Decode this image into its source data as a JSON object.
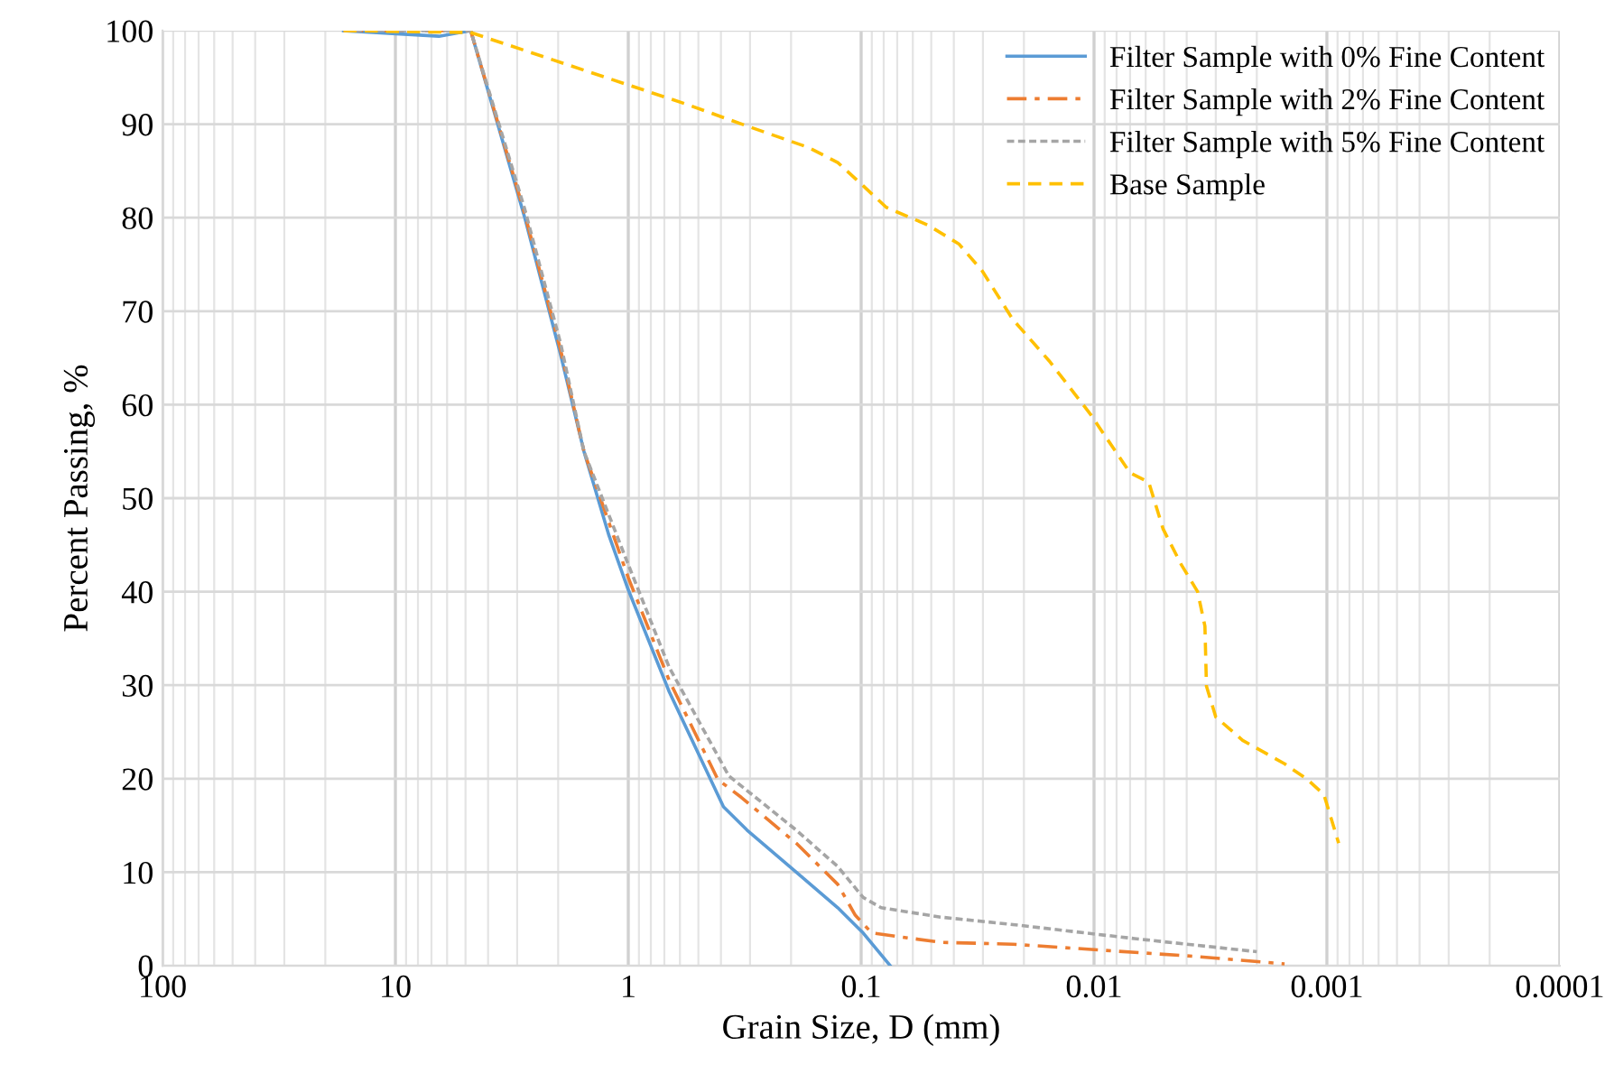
{
  "chart_data": {
    "type": "line",
    "xlabel": "Grain Size, D (mm)",
    "ylabel": "Percent Passing, %",
    "log": "x",
    "xlim": [
      100,
      0.0001
    ],
    "xticks": [
      100,
      10,
      1,
      0.1,
      0.01,
      0.001,
      0.0001
    ],
    "ylim": [
      0,
      100
    ],
    "yticks": [
      0,
      10,
      20,
      30,
      40,
      50,
      60,
      70,
      80,
      90,
      100
    ],
    "grid": true,
    "legend": "top right",
    "marker": "none",
    "series": [
      {
        "name": "Filter Sample with 0% Fine Content",
        "color": "#5b9bd5",
        "line_style": "solid",
        "x": [
          16.7,
          6.5,
          4.75,
          2.79,
          1.95,
          1.55,
          1.21,
          1.0,
          0.667,
          0.39,
          0.309,
          0.19,
          0.126,
          0.098,
          0.075
        ],
        "values": [
          100,
          99.4,
          100,
          80.1,
          65.3,
          55.0,
          46.0,
          40.2,
          29.3,
          17.0,
          14.5,
          10.0,
          6.2,
          3.5,
          0
        ]
      },
      {
        "name": "Filter Sample with 2% Fine Content",
        "color": "#ed7d31",
        "line_style": "dashdot",
        "x": [
          16.7,
          4.75,
          2.79,
          1.95,
          1.55,
          1.0,
          0.667,
          0.412,
          0.327,
          0.19,
          0.126,
          0.106,
          0.09,
          0.0456,
          0.0223,
          0.0037,
          0.00152
        ],
        "values": [
          100,
          100,
          80.5,
          65.8,
          55.0,
          41.5,
          30.5,
          19.9,
          18.0,
          13.1,
          8.7,
          5.4,
          3.5,
          2.5,
          2.3,
          1.0,
          0.2
        ]
      },
      {
        "name": "Filter Sample with 5% Fine Content",
        "color": "#a5a5a5",
        "line_style": "dotted",
        "x": [
          16.7,
          4.75,
          2.79,
          1.95,
          1.55,
          1.0,
          0.667,
          0.37,
          0.19,
          0.126,
          0.098,
          0.082,
          0.0456,
          0.0223,
          0.0067,
          0.002
        ],
        "values": [
          100,
          100,
          81.0,
          66.5,
          55.0,
          42.9,
          31.9,
          20.3,
          14.5,
          10.6,
          7.3,
          6.2,
          5.2,
          4.4,
          2.9,
          1.5
        ]
      },
      {
        "name": "Base Sample",
        "color": "#ffc000",
        "line_style": "dashed",
        "x": [
          16.7,
          4.75,
          0.558,
          0.309,
          0.168,
          0.126,
          0.098,
          0.078,
          0.0516,
          0.0381,
          0.0302,
          0.0223,
          0.0156,
          0.0103,
          0.0091,
          0.007,
          0.00582,
          0.00505,
          0.00422,
          0.00359,
          0.00334,
          0.00329,
          0.003,
          0.0023,
          0.00152,
          0.00121,
          0.00103,
          0.00089
        ],
        "values": [
          100,
          99.8,
          92.1,
          89.8,
          87.5,
          85.9,
          83.4,
          81.1,
          79.2,
          77.2,
          74.3,
          69.1,
          64.7,
          58.9,
          56.9,
          52.7,
          51.7,
          46.7,
          42.9,
          40.0,
          36.3,
          29.9,
          26.6,
          24.1,
          21.6,
          19.9,
          18.3,
          13.1
        ]
      }
    ]
  }
}
